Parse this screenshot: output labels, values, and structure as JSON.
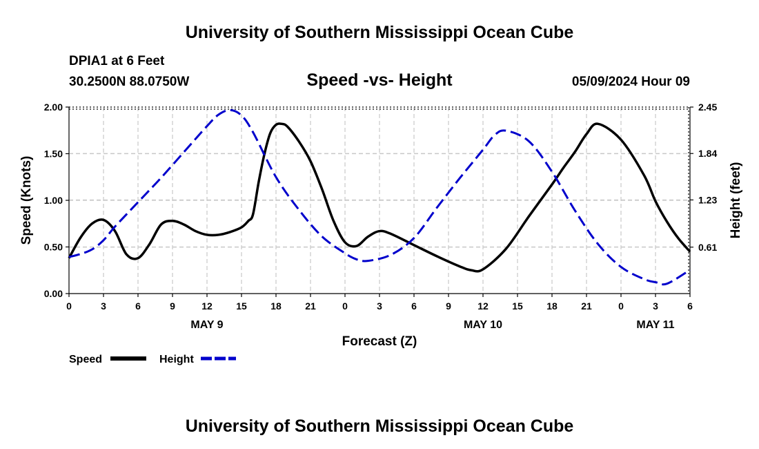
{
  "header": {
    "title": "University of Southern Mississippi Ocean Cube",
    "station": "DPIA1 at 6 Feet",
    "coords": "30.2500N  88.0750W",
    "chart_name": "Speed -vs- Height",
    "timestamp": "05/09/2024 Hour 09"
  },
  "footer": {
    "title": "University of Southern Mississippi Ocean Cube"
  },
  "legend": {
    "items": [
      {
        "label": "Speed",
        "color": "#000000",
        "style": "solid"
      },
      {
        "label": "Height",
        "color": "#0000cc",
        "style": "dashed"
      }
    ]
  },
  "chart_data": {
    "type": "line",
    "title": "Speed -vs- Height",
    "xlabel": "Forecast (Z)",
    "ylabel": "Speed (Knots)",
    "y2label": "Height (feet)",
    "xlim": [
      0,
      54
    ],
    "ylim": [
      0,
      2
    ],
    "y2lim": [
      0,
      2.45
    ],
    "grid": true,
    "legend_position": "bottom-left",
    "x_ticks": [
      0,
      3,
      6,
      9,
      12,
      15,
      18,
      21,
      24,
      27,
      30,
      33,
      36,
      39,
      42,
      45,
      48,
      51,
      54
    ],
    "x_tick_labels": [
      "0",
      "3",
      "6",
      "9",
      "12",
      "15",
      "18",
      "21",
      "0",
      "3",
      "6",
      "9",
      "12",
      "15",
      "18",
      "21",
      "0",
      "3",
      "6"
    ],
    "y_ticks": [
      0,
      0.5,
      1,
      1.5,
      2
    ],
    "y_tick_labels": [
      "0.00",
      "0.50",
      "1.00",
      "1.50",
      "2.00"
    ],
    "y2_ticks": [
      0.61,
      1.23,
      1.84,
      2.45
    ],
    "y2_tick_labels": [
      "0.61",
      "1.23",
      "1.84",
      "2.45"
    ],
    "date_labels": [
      {
        "x": 12,
        "label": "MAY 9"
      },
      {
        "x": 36,
        "label": "MAY 10"
      },
      {
        "x": 51,
        "label": "MAY 11"
      }
    ],
    "series": [
      {
        "name": "Speed",
        "axis": "left",
        "color": "#000000",
        "style": "solid",
        "x": [
          0,
          1,
          2,
          3,
          4,
          5,
          6,
          7,
          8,
          9,
          10,
          11,
          12,
          13,
          14,
          15,
          15.6,
          16,
          16.5,
          17,
          17.5,
          18,
          18.5,
          19,
          20,
          21,
          22,
          23,
          24,
          25,
          26,
          27,
          28,
          30,
          32,
          34,
          35,
          36,
          38,
          40,
          42,
          43,
          44,
          45,
          46,
          48,
          50,
          51,
          52,
          53,
          54
        ],
        "values": [
          0.38,
          0.6,
          0.75,
          0.79,
          0.67,
          0.42,
          0.38,
          0.53,
          0.74,
          0.78,
          0.74,
          0.67,
          0.63,
          0.63,
          0.66,
          0.71,
          0.78,
          0.85,
          1.2,
          1.5,
          1.72,
          1.81,
          1.82,
          1.79,
          1.63,
          1.42,
          1.12,
          0.78,
          0.55,
          0.51,
          0.61,
          0.67,
          0.64,
          0.52,
          0.4,
          0.29,
          0.25,
          0.26,
          0.48,
          0.83,
          1.17,
          1.35,
          1.52,
          1.71,
          1.82,
          1.65,
          1.27,
          0.99,
          0.77,
          0.59,
          0.45
        ]
      },
      {
        "name": "Height",
        "axis": "right",
        "color": "#0000cc",
        "style": "dashed",
        "x": [
          0,
          1,
          2,
          3,
          4,
          6,
          8,
          10,
          12,
          13,
          14,
          15,
          16,
          18,
          20,
          22,
          24,
          25,
          26,
          28,
          30,
          32,
          34,
          36,
          37,
          38,
          40,
          42,
          44,
          46,
          48,
          50,
          51,
          52,
          54
        ],
        "values": [
          0.48,
          0.52,
          0.58,
          0.7,
          0.88,
          1.2,
          1.52,
          1.86,
          2.2,
          2.35,
          2.41,
          2.34,
          2.12,
          1.53,
          1.1,
          0.75,
          0.53,
          0.45,
          0.43,
          0.51,
          0.73,
          1.13,
          1.52,
          1.89,
          2.08,
          2.14,
          2.0,
          1.6,
          1.09,
          0.65,
          0.35,
          0.19,
          0.15,
          0.13,
          0.31
        ]
      }
    ]
  }
}
